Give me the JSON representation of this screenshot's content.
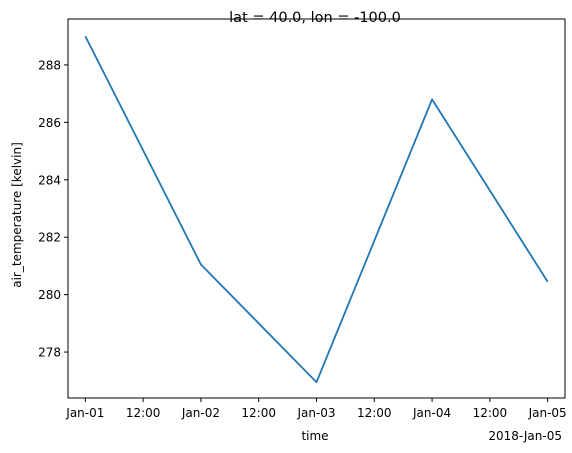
{
  "chart_data": {
    "type": "line",
    "title": "lat = 40.0, lon = -100.0",
    "xlabel": "time",
    "ylabel": "air_temperature [kelvin]",
    "x": [
      "2018-01-01 00:00",
      "2018-01-02 00:00",
      "2018-01-03 00:00",
      "2018-01-04 00:00",
      "2018-01-05 00:00"
    ],
    "series": [
      {
        "values": [
          289.0,
          281.05,
          276.95,
          286.8,
          280.45
        ],
        "color": "#1f77b4"
      }
    ],
    "ylim": [
      276.4,
      289.6
    ],
    "xlim": [
      "2017-12-31 20:24",
      "2018-01-05 03:36"
    ],
    "x_ticks": [
      "Jan-01",
      "12:00",
      "Jan-02",
      "12:00",
      "Jan-03",
      "12:00",
      "Jan-04",
      "12:00",
      "Jan-05"
    ],
    "x_offset_label": "2018-Jan-05",
    "y_ticks": [
      278,
      280,
      282,
      284,
      286,
      288
    ],
    "grid": false,
    "legend": "none"
  }
}
